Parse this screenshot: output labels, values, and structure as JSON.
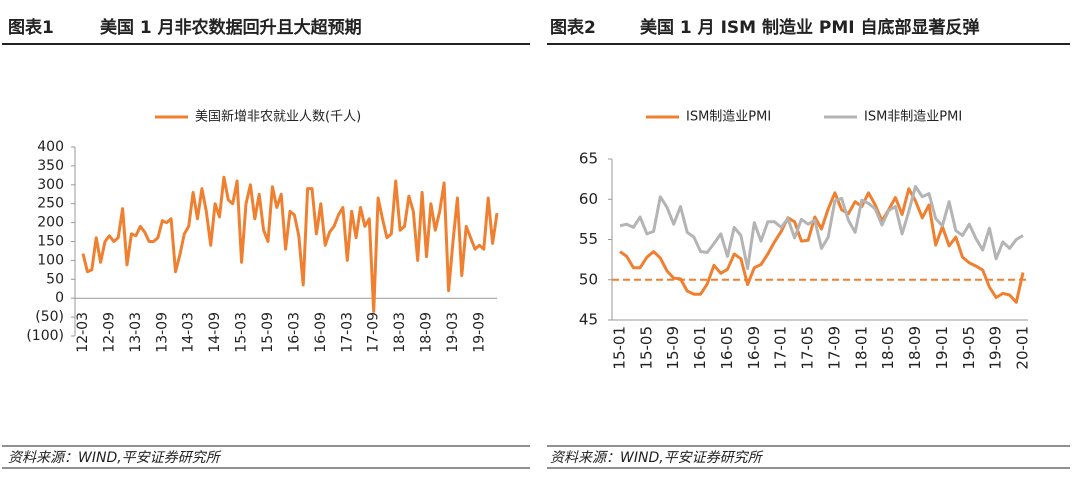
{
  "chart_data": [
    {
      "type": "line",
      "label": "图表1",
      "title": "美国 1 月非农数据回升且大超预期",
      "source": "资料来源：WIND,平安证券研究所",
      "categories": [
        "12-03",
        null,
        null,
        null,
        null,
        null,
        "12-09",
        null,
        null,
        null,
        null,
        null,
        "13-03",
        null,
        null,
        null,
        null,
        null,
        "13-09",
        null,
        null,
        null,
        null,
        null,
        "14-03",
        null,
        null,
        null,
        null,
        null,
        "14-09",
        null,
        null,
        null,
        null,
        null,
        "15-03",
        null,
        null,
        null,
        null,
        null,
        "15-09",
        null,
        null,
        null,
        null,
        null,
        "16-03",
        null,
        null,
        null,
        null,
        null,
        "16-09",
        null,
        null,
        null,
        null,
        null,
        "17-03",
        null,
        null,
        null,
        null,
        null,
        "17-09",
        null,
        null,
        null,
        null,
        null,
        "18-03",
        null,
        null,
        null,
        null,
        null,
        "18-09",
        null,
        null,
        null,
        null,
        null,
        "19-03",
        null,
        null,
        null,
        null,
        null,
        "19-09",
        null,
        null,
        null,
        null
      ],
      "series": [
        {
          "name": "美国新增非农就业人数(千人)",
          "color": "#f07f2f",
          "values": [
            118,
            70,
            75,
            160,
            95,
            150,
            165,
            150,
            160,
            237,
            88,
            170,
            165,
            190,
            175,
            150,
            150,
            160,
            205,
            200,
            210,
            70,
            115,
            170,
            190,
            280,
            210,
            290,
            230,
            140,
            250,
            215,
            320,
            260,
            250,
            310,
            95,
            250,
            300,
            210,
            275,
            180,
            150,
            295,
            240,
            275,
            130,
            230,
            220,
            165,
            35,
            290,
            290,
            170,
            250,
            140,
            175,
            190,
            220,
            240,
            100,
            230,
            160,
            240,
            190,
            210,
            -35,
            265,
            210,
            160,
            170,
            310,
            180,
            190,
            270,
            230,
            100,
            280,
            110,
            250,
            180,
            230,
            305,
            20,
            150,
            265,
            60,
            190,
            160,
            130,
            140,
            130,
            265,
            145,
            225
          ]
        }
      ],
      "ylim": [
        -100,
        400
      ],
      "yticks": [
        {
          "value": -100,
          "label": "(100)"
        },
        {
          "value": -50,
          "label": "(50)"
        },
        0,
        50,
        100,
        150,
        200,
        250,
        300,
        350,
        400
      ],
      "negative_tick_color": "#ff0000",
      "grid": false
    },
    {
      "type": "line",
      "label": "图表2",
      "title": "美国 1 月 ISM 制造业 PMI 自底部显著反弹",
      "source": "资料来源：WIND,平安证券研究所",
      "categories": [
        "15-01",
        null,
        null,
        null,
        "15-05",
        null,
        null,
        null,
        "15-09",
        null,
        null,
        null,
        "16-01",
        null,
        null,
        null,
        "16-05",
        null,
        null,
        null,
        "16-09",
        null,
        null,
        null,
        "17-01",
        null,
        null,
        null,
        "17-05",
        null,
        null,
        null,
        "17-09",
        null,
        null,
        null,
        "18-01",
        null,
        null,
        null,
        "18-05",
        null,
        null,
        null,
        "18-09",
        null,
        null,
        null,
        "19-01",
        null,
        null,
        null,
        "19-05",
        null,
        null,
        null,
        "19-09",
        null,
        null,
        null,
        "20-01"
      ],
      "series": [
        {
          "name": "ISM制造业PMI",
          "color": "#f07f2f",
          "values": [
            53.5,
            52.9,
            51.5,
            51.5,
            52.8,
            53.5,
            52.7,
            51.1,
            50.2,
            50.1,
            48.6,
            48.2,
            48.2,
            49.5,
            51.8,
            50.8,
            51.3,
            53.2,
            52.6,
            49.4,
            51.5,
            51.9,
            53.2,
            54.7,
            56.0,
            57.7,
            57.2,
            54.8,
            54.9,
            57.8,
            56.3,
            58.8,
            60.8,
            58.7,
            58.2,
            59.7,
            59.1,
            60.8,
            59.3,
            57.3,
            58.7,
            60.2,
            58.1,
            61.3,
            59.8,
            57.7,
            59.3,
            54.3,
            56.6,
            54.2,
            55.3,
            52.8,
            52.1,
            51.7,
            51.2,
            49.1,
            47.8,
            48.3,
            48.1,
            47.2,
            50.9
          ]
        },
        {
          "name": "ISM非制造业PMI",
          "color": "#b4b4b4",
          "values": [
            56.7,
            56.9,
            56.5,
            57.8,
            55.7,
            56.0,
            60.3,
            59.0,
            56.9,
            59.1,
            55.9,
            55.3,
            53.5,
            53.4,
            54.5,
            55.7,
            52.9,
            56.5,
            55.5,
            51.4,
            57.1,
            54.8,
            57.2,
            57.2,
            56.5,
            57.6,
            55.2,
            57.5,
            56.9,
            57.4,
            53.9,
            55.3,
            59.8,
            60.1,
            57.4,
            55.9,
            59.9,
            59.5,
            58.8,
            56.8,
            58.6,
            59.1,
            55.7,
            58.5,
            61.6,
            60.3,
            60.7,
            57.6,
            56.7,
            59.7,
            56.1,
            55.5,
            56.9,
            55.1,
            53.7,
            56.4,
            52.6,
            54.7,
            53.9,
            55.0,
            55.5
          ]
        }
      ],
      "ylim": [
        45,
        65
      ],
      "yticks": [
        45,
        50,
        55,
        60,
        65
      ],
      "reference_line": {
        "value": 50,
        "color": "#f07f2f",
        "style": "dashed"
      },
      "grid": false
    }
  ]
}
